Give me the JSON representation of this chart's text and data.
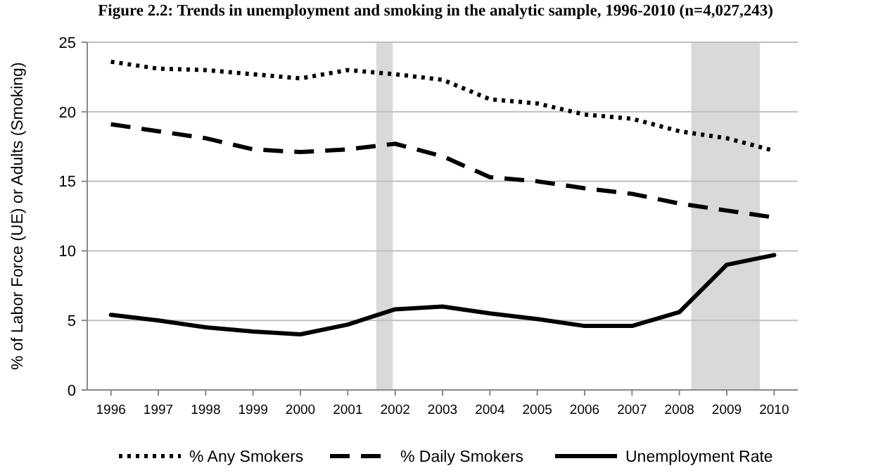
{
  "chart_data": {
    "type": "line",
    "title": "Figure 2.2: Trends in unemployment and smoking in the analytic sample, 1996-2010 (n=4,027,243)",
    "ylabel": "% of Labor Force (UE) or Adults (Smoking)",
    "x": [
      1996,
      1997,
      1998,
      1999,
      2000,
      2001,
      2002,
      2003,
      2004,
      2005,
      2006,
      2007,
      2008,
      2009,
      2010
    ],
    "xlim": [
      1995.5,
      2010.5
    ],
    "xticks": [
      1996,
      1997,
      1998,
      1999,
      2000,
      2001,
      2002,
      2003,
      2004,
      2005,
      2006,
      2007,
      2008,
      2009,
      2010
    ],
    "ylim": [
      0,
      25
    ],
    "yticks": [
      0,
      5,
      10,
      15,
      20,
      25
    ],
    "grid": "y",
    "legend": "bottom",
    "marker": "none",
    "bands": [
      {
        "axis": "x",
        "from": 2001.6,
        "to": 2001.95,
        "color": "#d9d9d9"
      },
      {
        "axis": "x",
        "from": 2008.25,
        "to": 2009.7,
        "color": "#d9d9d9"
      }
    ],
    "series": [
      {
        "name": "% Any Smokers",
        "color": "#000000",
        "line_style": "dotted",
        "values": [
          23.6,
          23.1,
          23.0,
          22.7,
          22.4,
          23.0,
          22.7,
          22.3,
          20.9,
          20.6,
          19.8,
          19.5,
          18.6,
          18.1,
          17.2
        ]
      },
      {
        "name": "% Daily Smokers",
        "color": "#000000",
        "line_style": "dashed",
        "values": [
          19.1,
          18.6,
          18.1,
          17.3,
          17.1,
          17.3,
          17.7,
          16.8,
          15.3,
          15.0,
          14.5,
          14.1,
          13.4,
          12.9,
          12.4
        ]
      },
      {
        "name": "Unemployment Rate",
        "color": "#000000",
        "line_style": "solid",
        "values": [
          5.4,
          5.0,
          4.5,
          4.2,
          4.0,
          4.7,
          5.8,
          6.0,
          5.5,
          5.1,
          4.6,
          4.6,
          5.6,
          9.0,
          9.7
        ]
      }
    ]
  }
}
